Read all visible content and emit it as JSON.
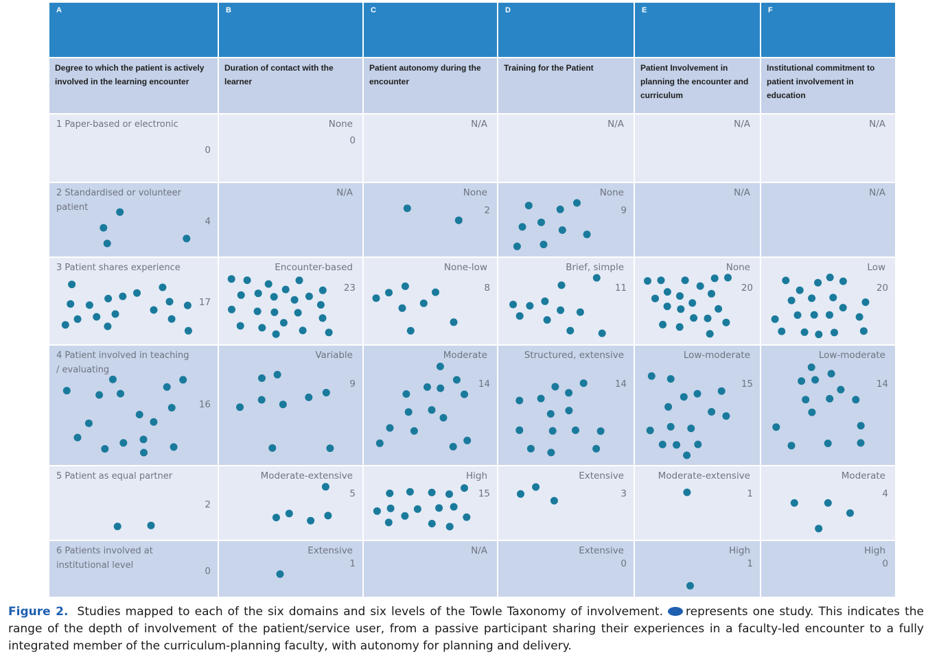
{
  "table": {
    "column_letters": [
      "A",
      "B",
      "C",
      "D",
      "E",
      "F"
    ],
    "column_headers": [
      "Degree to which the patient is actively involved in the learning encounter",
      "Duration of contact with the learner",
      "Patient autonomy during the encounter",
      "Training for the Patient",
      "Patient Involvement in planning the encounter and curriculum",
      "Institutional commitment to patient involvement in education"
    ],
    "rows": [
      {
        "label": "1 Paper-based or electronic",
        "cells": [
          {
            "value": "",
            "count": 0
          },
          {
            "value": "None",
            "count": 0
          },
          {
            "value": "N/A",
            "count": null
          },
          {
            "value": "N/A",
            "count": null
          },
          {
            "value": "N/A",
            "count": null
          },
          {
            "value": "N/A",
            "count": null
          }
        ]
      },
      {
        "label": "2 Standardised or volunteer patient",
        "cells": [
          {
            "value": "",
            "count": 4
          },
          {
            "value": "N/A",
            "count": null
          },
          {
            "value": "None",
            "count": 2
          },
          {
            "value": "None",
            "count": 9
          },
          {
            "value": "N/A",
            "count": null
          },
          {
            "value": "N/A",
            "count": null
          }
        ]
      },
      {
        "label": "3 Patient shares experience",
        "cells": [
          {
            "value": "",
            "count": 17
          },
          {
            "value": "Encounter-based",
            "count": 23
          },
          {
            "value": "None-low",
            "count": 8
          },
          {
            "value": "Brief, simple",
            "count": 11
          },
          {
            "value": "None",
            "count": 20
          },
          {
            "value": "Low",
            "count": 20
          }
        ]
      },
      {
        "label": "4 Patient involved in teaching / evaluating",
        "cells": [
          {
            "value": "",
            "count": 16
          },
          {
            "value": "Variable",
            "count": 9
          },
          {
            "value": "Moderate",
            "count": 14
          },
          {
            "value": "Structured, extensive",
            "count": 14
          },
          {
            "value": "Low-moderate",
            "count": 15
          },
          {
            "value": "Low-moderate",
            "count": 14
          }
        ]
      },
      {
        "label": "5 Patient as equal partner",
        "cells": [
          {
            "value": "",
            "count": 2
          },
          {
            "value": "Moderate-extensive",
            "count": 5
          },
          {
            "value": "High",
            "count": 15
          },
          {
            "value": "Extensive",
            "count": 3
          },
          {
            "value": "Moderate-extensive",
            "count": 1
          },
          {
            "value": "Moderate",
            "count": 4
          }
        ]
      },
      {
        "label": "6 Patients involved at institutional level",
        "cells": [
          {
            "value": "",
            "count": 0
          },
          {
            "value": "Extensive",
            "count": 1
          },
          {
            "value": "N/A",
            "count": null
          },
          {
            "value": "Extensive",
            "count": 0
          },
          {
            "value": "High",
            "count": 1
          },
          {
            "value": "High",
            "count": 0
          }
        ]
      }
    ]
  },
  "caption": {
    "figure_label": "Figure 2.",
    "text_before_symbol": "Studies mapped to each of the six domains and six levels of the Towle Taxonomy of involvement.",
    "text_after_symbol": "represents one study. This indicates the range of the depth of involvement of the patient/service user, from a passive participant sharing their experiences in a faculty-led encounter to a fully integrated member of the curriculum-planning faculty, with autonomy for planning and delivery."
  },
  "colors": {
    "letter_header": "#2a85c6",
    "column_header": "#c4d1e8",
    "light_row": "#e5eaf5",
    "dark_row": "#c9d5eb",
    "dot": "#1a7a9c",
    "figure_label": "#1e5fb0"
  },
  "icons": {
    "study_marker": "filled-circle-dot"
  }
}
